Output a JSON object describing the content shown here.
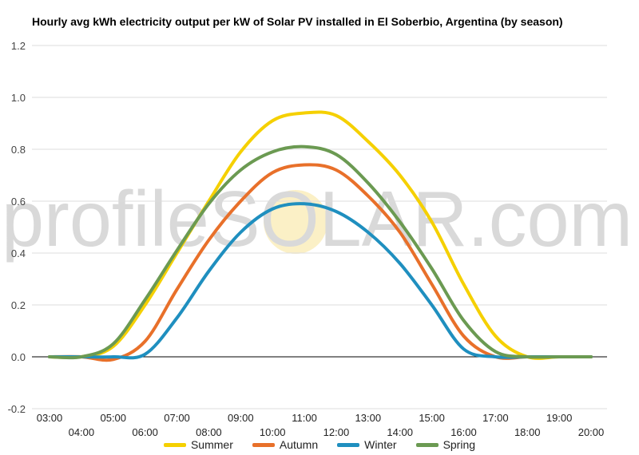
{
  "chart_data": {
    "type": "line",
    "title": "Hourly avg kWh electricity output per kW of Solar PV installed in El Soberbio, Argentina (by season)",
    "watermark": "profileSOLAR.com",
    "xlabel": "",
    "ylabel": "",
    "ylim": [
      -0.2,
      1.2
    ],
    "yticks": [
      "-0.2",
      "0.0",
      "0.2",
      "0.4",
      "0.6",
      "0.8",
      "1.0",
      "1.2"
    ],
    "x": [
      "03:00",
      "04:00",
      "05:00",
      "06:00",
      "07:00",
      "08:00",
      "09:00",
      "10:00",
      "11:00",
      "12:00",
      "13:00",
      "14:00",
      "15:00",
      "16:00",
      "17:00",
      "18:00",
      "19:00",
      "20:00"
    ],
    "grid": true,
    "legend_position": "bottom",
    "series": [
      {
        "name": "Summer",
        "color": "#f5d000",
        "values": [
          0.0,
          0.0,
          0.04,
          0.2,
          0.4,
          0.6,
          0.79,
          0.91,
          0.94,
          0.93,
          0.83,
          0.7,
          0.52,
          0.28,
          0.08,
          0.0,
          0.0,
          0.0
        ]
      },
      {
        "name": "Autumn",
        "color": "#e8702a",
        "values": [
          0.0,
          0.0,
          -0.01,
          0.06,
          0.26,
          0.45,
          0.6,
          0.71,
          0.74,
          0.72,
          0.62,
          0.48,
          0.28,
          0.08,
          0.0,
          0.0,
          0.0,
          0.0
        ]
      },
      {
        "name": "Winter",
        "color": "#1f8fbf",
        "values": [
          0.0,
          0.0,
          0.0,
          0.01,
          0.15,
          0.33,
          0.48,
          0.57,
          0.59,
          0.56,
          0.48,
          0.36,
          0.2,
          0.03,
          0.0,
          0.0,
          0.0,
          0.0
        ]
      },
      {
        "name": "Spring",
        "color": "#6b9a52",
        "values": [
          0.0,
          0.0,
          0.05,
          0.22,
          0.41,
          0.59,
          0.72,
          0.79,
          0.81,
          0.78,
          0.67,
          0.52,
          0.34,
          0.14,
          0.02,
          0.0,
          0.0,
          0.0
        ]
      }
    ]
  }
}
